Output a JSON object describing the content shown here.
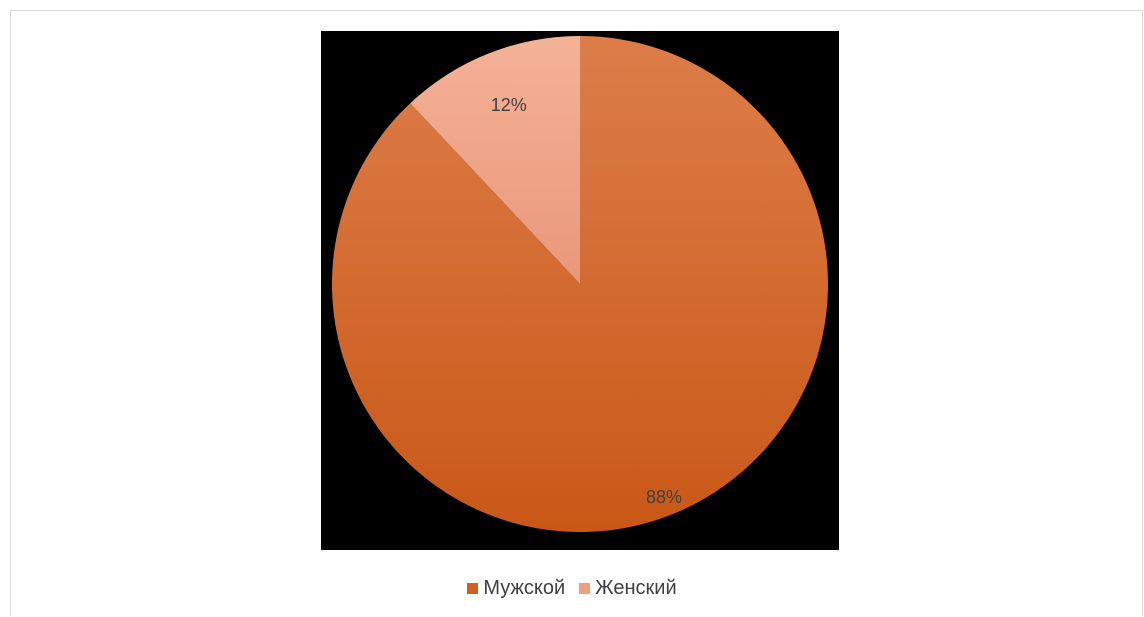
{
  "chart_data": {
    "type": "pie",
    "categories": [
      "Мужской",
      "Женский"
    ],
    "values": [
      88,
      12
    ],
    "data_labels": [
      "88%",
      "12%"
    ],
    "colors": [
      "#d2611f",
      "#f0a07c"
    ],
    "colors_light": [
      "#dd7d4a",
      "#f5b297"
    ],
    "legend_position": "bottom",
    "start_angle": "12 o'clock",
    "direction": "clockwise",
    "plot_background": "#000000"
  },
  "legend": {
    "items": [
      {
        "label": "Мужской",
        "color": "#d2611f"
      },
      {
        "label": "Женский",
        "color": "#f0a07c"
      }
    ]
  }
}
